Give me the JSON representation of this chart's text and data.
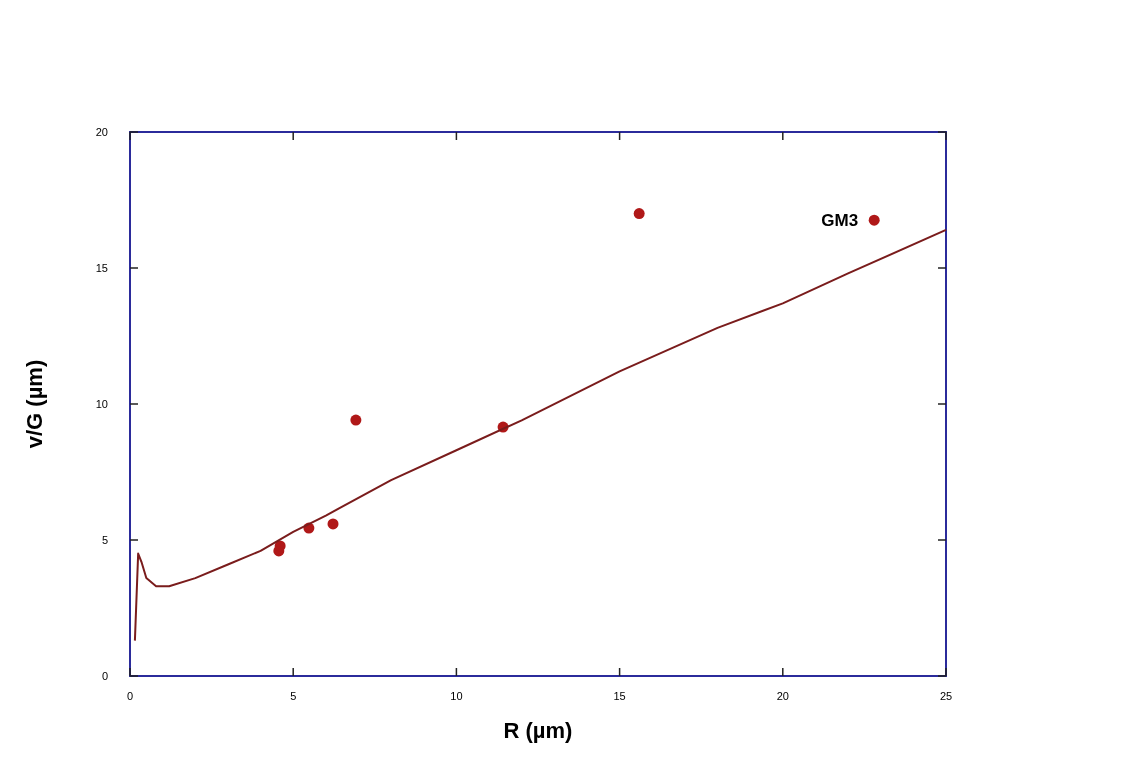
{
  "chart_data": {
    "type": "scatter",
    "xlabel": "R (µm)",
    "ylabel": "v/G (µm)",
    "xlim": [
      0,
      25
    ],
    "ylim": [
      0,
      20
    ],
    "xticks": [
      0,
      5,
      10,
      15,
      20,
      25
    ],
    "yticks": [
      0,
      5,
      10,
      15,
      20
    ],
    "grid": false,
    "marker": "circle",
    "annotations": [
      {
        "text": "GM3",
        "x": 22.8,
        "y": 16.76
      }
    ],
    "series": [
      {
        "color": "#b01818",
        "x": [
          4.56,
          4.6,
          5.48,
          6.22,
          6.92,
          11.43,
          15.6,
          22.8
        ],
        "values": [
          4.6,
          4.78,
          5.44,
          5.59,
          9.41,
          9.15,
          17.0,
          16.76
        ]
      },
      {
        "type": "line",
        "color": "#7a1c1c",
        "marker": "none",
        "line_style": "solid",
        "x": [
          0.15,
          0.25,
          0.35,
          0.5,
          0.8,
          1.2,
          2,
          3,
          4,
          5,
          6,
          8,
          10,
          12,
          15,
          18,
          20,
          22,
          25
        ],
        "values": [
          1.3,
          4.5,
          4.2,
          3.6,
          3.3,
          3.3,
          3.6,
          4.1,
          4.6,
          5.3,
          5.9,
          7.2,
          8.3,
          9.4,
          11.2,
          12.8,
          13.7,
          14.8,
          16.4
        ]
      }
    ]
  }
}
